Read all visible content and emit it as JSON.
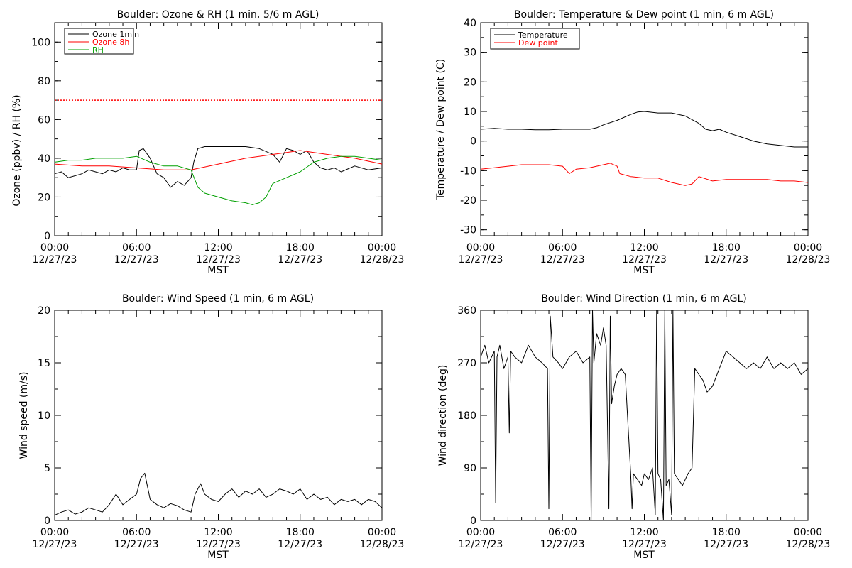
{
  "chart_data": [
    {
      "type": "line",
      "title": "Boulder: Ozone & RH (1 min, 5/6 m AGL)",
      "xlabel": "MST",
      "ylabel": "Ozone (ppbv) / RH (%)",
      "xlim": [
        "12/27/23 00:00",
        "12/28/23 00:00"
      ],
      "ylim": [
        0,
        110
      ],
      "yticks": [
        0,
        20,
        40,
        60,
        80,
        100
      ],
      "xticks": [
        {
          "time": "00:00",
          "date": "12/27/23"
        },
        {
          "time": "06:00",
          "date": "12/27/23"
        },
        {
          "time": "12:00",
          "date": "12/27/23"
        },
        {
          "time": "18:00",
          "date": "12/27/23"
        },
        {
          "time": "00:00",
          "date": "12/28/23"
        }
      ],
      "legend_position": "top-left",
      "reference_line": {
        "y": 70,
        "color": "#ff0000",
        "style": "dotted"
      },
      "series": [
        {
          "name": "Ozone 1min",
          "color": "#000000",
          "x": [
            0,
            0.5,
            1,
            1.5,
            2,
            2.5,
            3,
            3.5,
            4,
            4.5,
            5,
            5.5,
            6,
            6.2,
            6.5,
            7,
            7.5,
            8,
            8.5,
            9,
            9.5,
            10,
            10.2,
            10.5,
            11,
            12,
            13,
            14,
            15,
            16,
            16.5,
            17,
            17.5,
            18,
            18.5,
            19,
            19.5,
            20,
            20.5,
            21,
            22,
            23,
            24
          ],
          "y": [
            32,
            33,
            30,
            31,
            32,
            34,
            33,
            32,
            34,
            33,
            35,
            34,
            34,
            44,
            45,
            40,
            32,
            30,
            25,
            28,
            26,
            30,
            38,
            45,
            46,
            46,
            46,
            46,
            45,
            42,
            38,
            45,
            44,
            42,
            44,
            38,
            35,
            34,
            35,
            33,
            36,
            34,
            35
          ]
        },
        {
          "name": "Ozone 8h",
          "color": "#ff0000",
          "x": [
            0,
            2,
            4,
            6,
            8,
            10,
            12,
            14,
            16,
            18,
            20,
            22,
            24
          ],
          "y": [
            37,
            36,
            36,
            35,
            34,
            34,
            37,
            40,
            42,
            44,
            42,
            40,
            37
          ]
        },
        {
          "name": "RH",
          "color": "#00a000",
          "x": [
            0,
            1,
            2,
            3,
            4,
            5,
            6,
            7,
            8,
            9,
            10,
            10.5,
            11,
            12,
            13,
            14,
            14.5,
            15,
            15.5,
            16,
            17,
            18,
            19,
            20,
            21,
            22,
            23,
            24
          ],
          "y": [
            38,
            39,
            39,
            40,
            40,
            40,
            41,
            38,
            36,
            36,
            34,
            25,
            22,
            20,
            18,
            17,
            16,
            17,
            20,
            27,
            30,
            33,
            38,
            40,
            41,
            41,
            40,
            39
          ]
        }
      ]
    },
    {
      "type": "line",
      "title": "Boulder: Temperature & Dew point (1 min, 6 m AGL)",
      "xlabel": "MST",
      "ylabel": "Temperature / Dew point (C)",
      "xlim": [
        "12/27/23 00:00",
        "12/28/23 00:00"
      ],
      "ylim": [
        -32,
        40
      ],
      "yticks": [
        -30,
        -20,
        -10,
        0,
        10,
        20,
        30,
        40
      ],
      "xticks": [
        {
          "time": "00:00",
          "date": "12/27/23"
        },
        {
          "time": "06:00",
          "date": "12/27/23"
        },
        {
          "time": "12:00",
          "date": "12/27/23"
        },
        {
          "time": "18:00",
          "date": "12/27/23"
        },
        {
          "time": "00:00",
          "date": "12/28/23"
        }
      ],
      "legend_position": "top-left",
      "series": [
        {
          "name": "Temperature",
          "color": "#000000",
          "x": [
            0,
            1,
            2,
            3,
            4,
            5,
            6,
            7,
            8,
            8.5,
            9,
            10,
            11,
            11.5,
            12,
            13,
            14,
            14.5,
            15,
            16,
            16.5,
            17,
            17.5,
            18,
            19,
            20,
            21,
            22,
            23,
            24
          ],
          "y": [
            4,
            4.3,
            4,
            4,
            3.8,
            3.8,
            4,
            4,
            4,
            4.5,
            5.5,
            7,
            9,
            9.8,
            10,
            9.5,
            9.5,
            9,
            8.5,
            6,
            4,
            3.5,
            4,
            3,
            1.5,
            0,
            -1,
            -1.5,
            -2,
            -2
          ]
        },
        {
          "name": "Dew point",
          "color": "#ff0000",
          "x": [
            0,
            1,
            2,
            3,
            4,
            5,
            6,
            6.5,
            7,
            8,
            9,
            9.5,
            10,
            10.2,
            11,
            12,
            13,
            14,
            15,
            15.5,
            16,
            17,
            18,
            19,
            20,
            21,
            22,
            23,
            24
          ],
          "y": [
            -9.5,
            -9,
            -8.5,
            -8,
            -8,
            -8,
            -8.5,
            -11,
            -9.5,
            -9,
            -8,
            -7.5,
            -8.5,
            -11,
            -12,
            -12.5,
            -12.5,
            -14,
            -15,
            -14.5,
            -12,
            -13.5,
            -13,
            -13,
            -13,
            -13,
            -13.5,
            -13.5,
            -14
          ]
        }
      ]
    },
    {
      "type": "line",
      "title": "Boulder: Wind Speed (1 min, 6 m AGL)",
      "xlabel": "MST",
      "ylabel": "Wind speed (m/s)",
      "xlim": [
        "12/27/23 00:00",
        "12/28/23 00:00"
      ],
      "ylim": [
        0,
        20
      ],
      "yticks": [
        0,
        5,
        10,
        15,
        20
      ],
      "xticks": [
        {
          "time": "00:00",
          "date": "12/27/23"
        },
        {
          "time": "06:00",
          "date": "12/27/23"
        },
        {
          "time": "12:00",
          "date": "12/27/23"
        },
        {
          "time": "18:00",
          "date": "12/27/23"
        },
        {
          "time": "00:00",
          "date": "12/28/23"
        }
      ],
      "series": [
        {
          "color": "#000000",
          "x": [
            0,
            0.5,
            1,
            1.5,
            2,
            2.5,
            3,
            3.5,
            4,
            4.5,
            5,
            5.5,
            6,
            6.3,
            6.6,
            7,
            7.5,
            8,
            8.5,
            9,
            9.5,
            10,
            10.3,
            10.7,
            11,
            11.5,
            12,
            12.5,
            13,
            13.5,
            14,
            14.5,
            15,
            15.5,
            16,
            16.5,
            17,
            17.5,
            18,
            18.5,
            19,
            19.5,
            20,
            20.5,
            21,
            21.5,
            22,
            22.5,
            23,
            23.5,
            24
          ],
          "y": [
            0.5,
            0.8,
            1,
            0.6,
            0.8,
            1.2,
            1,
            0.8,
            1.5,
            2.5,
            1.5,
            2,
            2.5,
            4,
            4.5,
            2,
            1.5,
            1.2,
            1.6,
            1.4,
            1,
            0.8,
            2.5,
            3.5,
            2.5,
            2,
            1.8,
            2.5,
            3,
            2.2,
            2.8,
            2.5,
            3,
            2.2,
            2.5,
            3,
            2.8,
            2.5,
            3,
            2,
            2.5,
            2,
            2.2,
            1.5,
            2,
            1.8,
            2,
            1.5,
            2,
            1.8,
            1.2
          ]
        }
      ]
    },
    {
      "type": "line",
      "title": "Boulder: Wind Direction (1 min, 6 m AGL)",
      "xlabel": "MST",
      "ylabel": "Wind direction (deg)",
      "xlim": [
        "12/27/23 00:00",
        "12/28/23 00:00"
      ],
      "ylim": [
        0,
        360
      ],
      "yticks": [
        0,
        90,
        180,
        270,
        360
      ],
      "xticks": [
        {
          "time": "00:00",
          "date": "12/27/23"
        },
        {
          "time": "06:00",
          "date": "12/27/23"
        },
        {
          "time": "12:00",
          "date": "12/27/23"
        },
        {
          "time": "18:00",
          "date": "12/27/23"
        },
        {
          "time": "00:00",
          "date": "12/28/23"
        }
      ],
      "series": [
        {
          "color": "#000000",
          "x": [
            0,
            0.3,
            0.6,
            1,
            1.1,
            1.2,
            1.4,
            1.7,
            2,
            2.1,
            2.2,
            2.5,
            3,
            3.5,
            4,
            4.5,
            4.9,
            5,
            5.1,
            5.3,
            5.7,
            6,
            6.5,
            7,
            7.5,
            8,
            8.1,
            8.2,
            8.3,
            8.5,
            8.8,
            9,
            9.2,
            9.4,
            9.5,
            9.6,
            9.8,
            10,
            10.3,
            10.6,
            11,
            11.1,
            11.2,
            11.5,
            11.8,
            12,
            12.3,
            12.6,
            12.8,
            12.9,
            13,
            13.2,
            13.4,
            13.5,
            13.6,
            13.8,
            14,
            14.1,
            14.2,
            14.5,
            14.8,
            15,
            15.2,
            15.5,
            15.7,
            16,
            16.3,
            16.6,
            17,
            17.5,
            18,
            18.5,
            19,
            19.5,
            20,
            20.5,
            21,
            21.5,
            22,
            22.5,
            23,
            23.5,
            24
          ],
          "y": [
            280,
            300,
            270,
            290,
            30,
            280,
            300,
            260,
            280,
            150,
            290,
            280,
            270,
            300,
            280,
            270,
            260,
            20,
            350,
            280,
            270,
            260,
            280,
            290,
            270,
            280,
            0,
            360,
            270,
            320,
            300,
            330,
            300,
            20,
            350,
            200,
            230,
            250,
            260,
            250,
            80,
            20,
            80,
            70,
            60,
            80,
            70,
            90,
            10,
            360,
            80,
            70,
            0,
            360,
            60,
            70,
            10,
            360,
            80,
            70,
            60,
            70,
            80,
            90,
            260,
            250,
            240,
            220,
            230,
            260,
            290,
            280,
            270,
            260,
            270,
            260,
            280,
            260,
            270,
            260,
            270,
            250,
            260
          ]
        }
      ]
    }
  ]
}
